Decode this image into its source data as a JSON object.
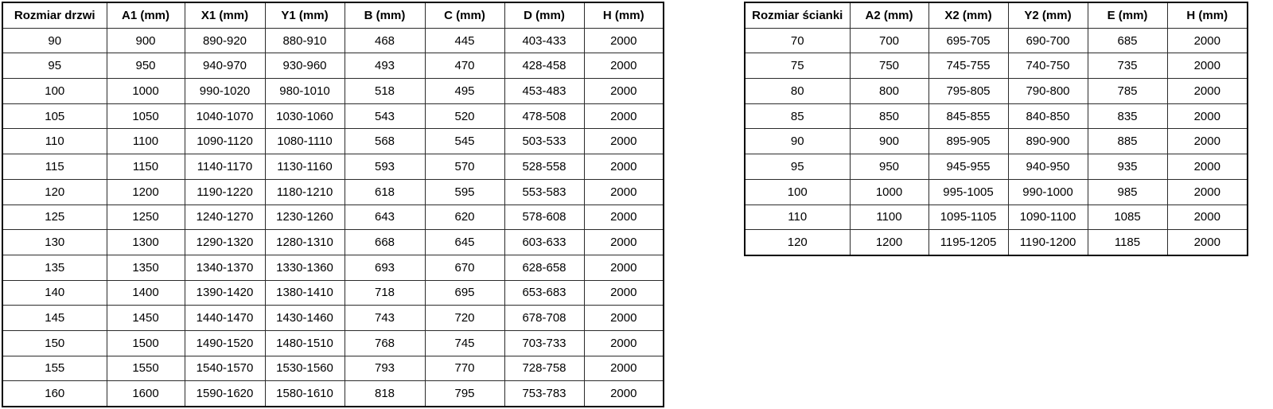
{
  "page": {
    "background_color": "#ffffff",
    "border_color": "#000000",
    "text_color": "#000000"
  },
  "tables": [
    {
      "id": "door-size-table",
      "headers": [
        "Rozmiar drzwi",
        "A1 (mm)",
        "X1 (mm)",
        "Y1 (mm)",
        "B (mm)",
        "C (mm)",
        "D (mm)",
        "H (mm)"
      ],
      "rows": [
        [
          "90",
          "900",
          "890-920",
          "880-910",
          "468",
          "445",
          "403-433",
          "2000"
        ],
        [
          "95",
          "950",
          "940-970",
          "930-960",
          "493",
          "470",
          "428-458",
          "2000"
        ],
        [
          "100",
          "1000",
          "990-1020",
          "980-1010",
          "518",
          "495",
          "453-483",
          "2000"
        ],
        [
          "105",
          "1050",
          "1040-1070",
          "1030-1060",
          "543",
          "520",
          "478-508",
          "2000"
        ],
        [
          "110",
          "1100",
          "1090-1120",
          "1080-1110",
          "568",
          "545",
          "503-533",
          "2000"
        ],
        [
          "115",
          "1150",
          "1140-1170",
          "1130-1160",
          "593",
          "570",
          "528-558",
          "2000"
        ],
        [
          "120",
          "1200",
          "1190-1220",
          "1180-1210",
          "618",
          "595",
          "553-583",
          "2000"
        ],
        [
          "125",
          "1250",
          "1240-1270",
          "1230-1260",
          "643",
          "620",
          "578-608",
          "2000"
        ],
        [
          "130",
          "1300",
          "1290-1320",
          "1280-1310",
          "668",
          "645",
          "603-633",
          "2000"
        ],
        [
          "135",
          "1350",
          "1340-1370",
          "1330-1360",
          "693",
          "670",
          "628-658",
          "2000"
        ],
        [
          "140",
          "1400",
          "1390-1420",
          "1380-1410",
          "718",
          "695",
          "653-683",
          "2000"
        ],
        [
          "145",
          "1450",
          "1440-1470",
          "1430-1460",
          "743",
          "720",
          "678-708",
          "2000"
        ],
        [
          "150",
          "1500",
          "1490-1520",
          "1480-1510",
          "768",
          "745",
          "703-733",
          "2000"
        ],
        [
          "155",
          "1550",
          "1540-1570",
          "1530-1560",
          "793",
          "770",
          "728-758",
          "2000"
        ],
        [
          "160",
          "1600",
          "1590-1620",
          "1580-1610",
          "818",
          "795",
          "753-783",
          "2000"
        ]
      ]
    },
    {
      "id": "wall-size-table",
      "headers": [
        "Rozmiar ścianki",
        "A2 (mm)",
        "X2 (mm)",
        "Y2 (mm)",
        "E (mm)",
        "H (mm)"
      ],
      "rows": [
        [
          "70",
          "700",
          "695-705",
          "690-700",
          "685",
          "2000"
        ],
        [
          "75",
          "750",
          "745-755",
          "740-750",
          "735",
          "2000"
        ],
        [
          "80",
          "800",
          "795-805",
          "790-800",
          "785",
          "2000"
        ],
        [
          "85",
          "850",
          "845-855",
          "840-850",
          "835",
          "2000"
        ],
        [
          "90",
          "900",
          "895-905",
          "890-900",
          "885",
          "2000"
        ],
        [
          "95",
          "950",
          "945-955",
          "940-950",
          "935",
          "2000"
        ],
        [
          "100",
          "1000",
          "995-1005",
          "990-1000",
          "985",
          "2000"
        ],
        [
          "110",
          "1100",
          "1095-1105",
          "1090-1100",
          "1085",
          "2000"
        ],
        [
          "120",
          "1200",
          "1195-1205",
          "1190-1200",
          "1185",
          "2000"
        ]
      ]
    }
  ]
}
